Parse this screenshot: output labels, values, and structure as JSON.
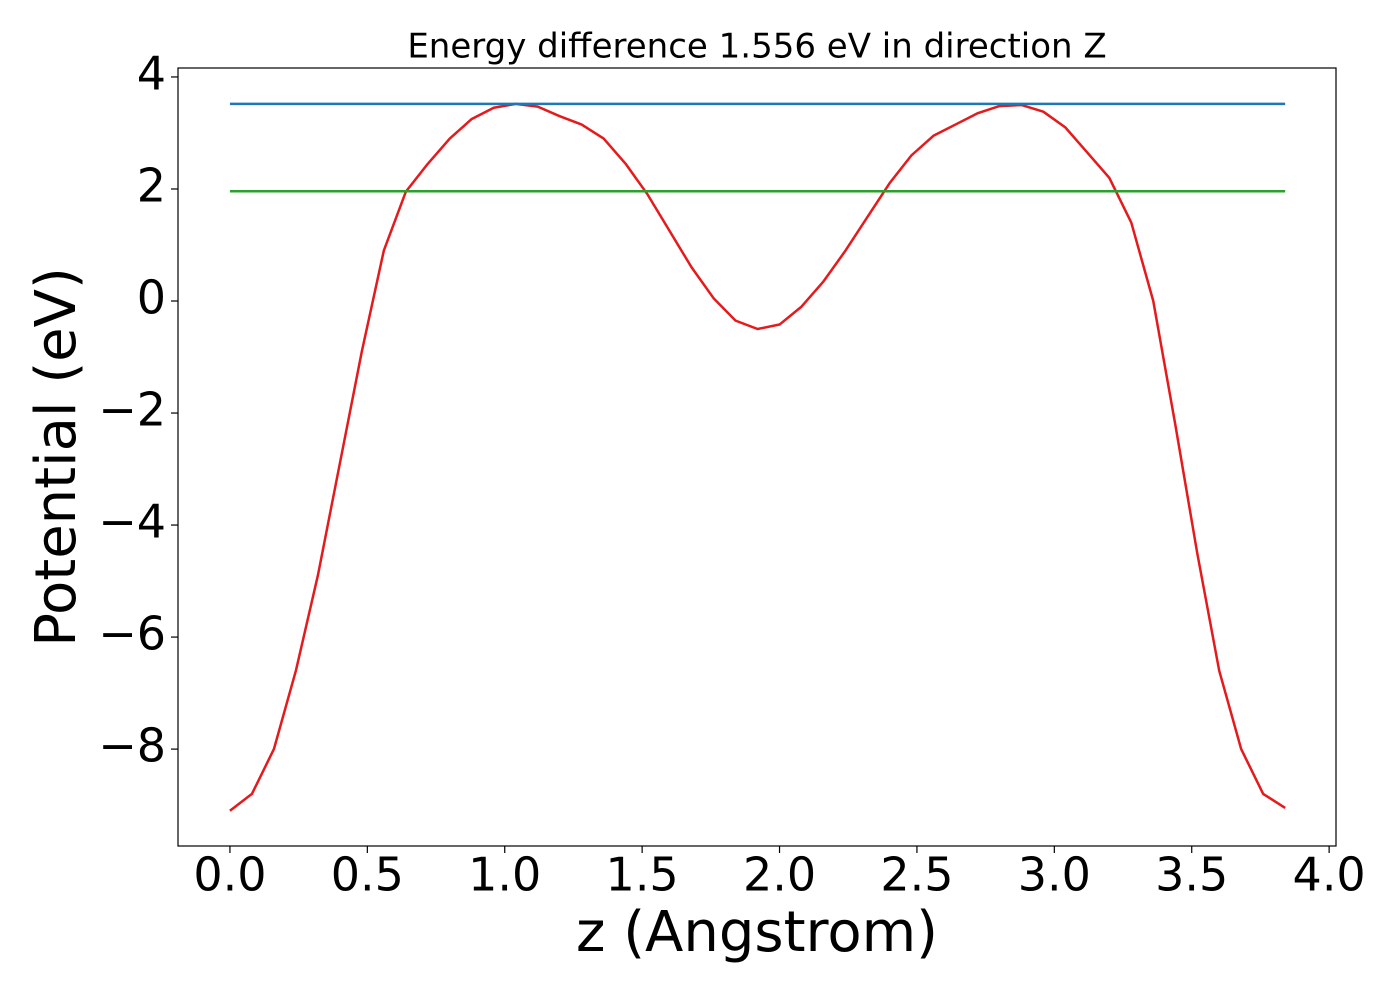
{
  "chart_data": {
    "type": "line",
    "title": "Energy difference 1.556 eV in direction Z",
    "xlabel": "z (Angstrom)",
    "ylabel": "Potential (eV)",
    "xlim": [
      -0.189,
      4.025
    ],
    "ylim": [
      -9.73,
      4.16
    ],
    "xticks": [
      {
        "value": 0,
        "label": "0.0"
      },
      0.5,
      {
        "value": 1,
        "label": "1.0"
      },
      1.5,
      {
        "value": 2,
        "label": "2.0"
      },
      2.5,
      {
        "value": 3,
        "label": "3.0"
      },
      3.5,
      {
        "value": 4,
        "label": "4.0"
      }
    ],
    "yticks": [
      {
        "value": -8,
        "label": "−8"
      },
      {
        "value": -6,
        "label": "−6"
      },
      {
        "value": -4,
        "label": "−4"
      },
      {
        "value": -2,
        "label": "−2"
      },
      0,
      2,
      4
    ],
    "series": [
      {
        "color": "#e41a1c",
        "x": [
          0,
          0.08,
          0.16,
          0.24,
          0.32,
          0.4,
          0.48,
          0.56,
          0.64,
          0.72,
          0.8,
          0.88,
          0.96,
          1.04,
          1.12,
          1.2,
          1.28,
          1.36,
          1.44,
          1.52,
          1.6,
          1.68,
          1.76,
          1.84,
          1.92,
          2.0,
          2.08,
          2.16,
          2.24,
          2.32,
          2.4,
          2.48,
          2.56,
          2.64,
          2.72,
          2.8,
          2.88,
          2.96,
          3.04,
          3.12,
          3.2,
          3.28,
          3.36,
          3.44,
          3.52,
          3.6,
          3.68,
          3.76,
          3.84
        ],
        "values": [
          -9.1,
          -8.8,
          -8.0,
          -6.6,
          -4.9,
          -2.9,
          -0.9,
          0.9,
          1.95,
          2.45,
          2.9,
          3.25,
          3.45,
          3.52,
          3.47,
          3.3,
          3.15,
          2.9,
          2.45,
          1.9,
          1.25,
          0.6,
          0.05,
          -0.35,
          -0.5,
          -0.42,
          -0.1,
          0.35,
          0.9,
          1.5,
          2.1,
          2.6,
          2.95,
          3.15,
          3.35,
          3.48,
          3.5,
          3.38,
          3.1,
          2.65,
          2.2,
          1.4,
          0.0,
          -2.2,
          -4.5,
          -6.6,
          -8.0,
          -8.8,
          -9.05
        ]
      },
      {
        "color": "#1f77b4",
        "x": [
          0,
          3.84
        ],
        "values": [
          3.52,
          3.52
        ]
      },
      {
        "color": "#2ca02c",
        "x": [
          0,
          3.84
        ],
        "values": [
          1.96,
          1.96
        ]
      }
    ]
  }
}
